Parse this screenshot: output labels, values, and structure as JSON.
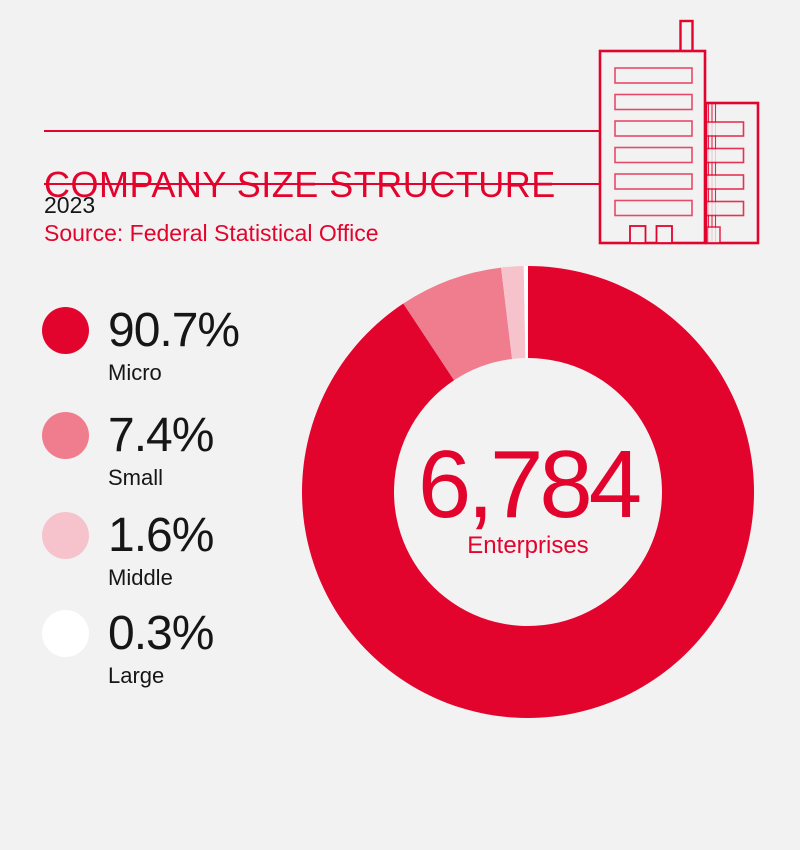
{
  "header": {
    "title": "COMPANY SIZE STRUCTURE",
    "year": "2023",
    "source": "Source: Federal Statistical Office"
  },
  "icon": {
    "name": "office-buildings-icon"
  },
  "colors": {
    "red": "#E3042E",
    "pink": "#EF7D8D",
    "light_pink": "#F6C3CC",
    "white": "#FFFFFF",
    "background": "#F2F2F3",
    "text": "#161616"
  },
  "chart_data": {
    "type": "pie",
    "donut": true,
    "title": "COMPANY SIZE STRUCTURE",
    "subtitle_year": "2023",
    "source": "Source: Federal Statistical Office",
    "units": "percent",
    "start_angle_deg": 0,
    "direction": "clockwise",
    "legend_position": "left",
    "center": {
      "value": "6,784",
      "label": "Enterprises"
    },
    "slices": [
      {
        "label": "Micro",
        "value": 90.7,
        "display": "90.7%",
        "color": "#E3042E"
      },
      {
        "label": "Small",
        "value": 7.4,
        "display": "7.4%",
        "color": "#EF7D8D"
      },
      {
        "label": "Middle",
        "value": 1.6,
        "display": "1.6%",
        "color": "#F6C3CC"
      },
      {
        "label": "Large",
        "value": 0.3,
        "display": "0.3%",
        "color": "#FFFFFF"
      }
    ]
  }
}
